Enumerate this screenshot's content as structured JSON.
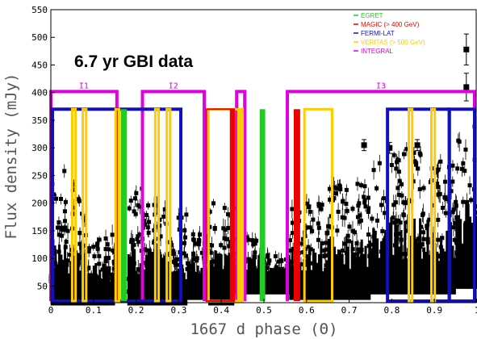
{
  "chart_data": {
    "type": "scatter",
    "title": "6.7 yr GBI data",
    "xlabel": "1667 d phase (Θ)",
    "ylabel": "Flux density (mJy)",
    "xlim": [
      0,
      1
    ],
    "ylim": [
      20,
      550
    ],
    "x_ticks": [
      0,
      0.1,
      0.2,
      0.3,
      0.4,
      0.5,
      0.6,
      0.7,
      0.8,
      0.9,
      1
    ],
    "y_ticks": [
      50,
      100,
      150,
      200,
      250,
      300,
      350,
      400,
      450,
      500,
      550
    ],
    "grid": false,
    "legend": {
      "placement": "top-right",
      "entries": [
        {
          "label": "EGRET",
          "color": "#22cc22"
        },
        {
          "label": "MAGIC (> 400 GeV)",
          "color": "#ee0000"
        },
        {
          "label": "FERMI-LAT",
          "color": "#1010c0"
        },
        {
          "label": "VERITAS (> 500 GeV)",
          "color": "#ffcc00"
        },
        {
          "label": "INTEGRAL",
          "color": "#e000e0"
        }
      ]
    },
    "integral_intervals": [
      {
        "label": "I1",
        "x0": 0.0,
        "x1": 0.155
      },
      {
        "label": "I2",
        "x0": 0.215,
        "x1": 0.36
      },
      {
        "label": "",
        "x0": 0.436,
        "x1": 0.455
      },
      {
        "label": "I3",
        "x0": 0.555,
        "x1": 1.0
      }
    ],
    "integral_level": 402,
    "fermi_boxes": [
      {
        "x0": 0.0,
        "x1": 0.305,
        "y0": 20,
        "y1": 370
      },
      {
        "x0": 0.79,
        "x1": 0.935,
        "y0": 20,
        "y1": 370
      },
      {
        "x0": 0.935,
        "x1": 1.0,
        "y0": 20,
        "y1": 370
      }
    ],
    "veritas_bars": [
      {
        "x0": 0.05,
        "x1": 0.058,
        "y1": 370
      },
      {
        "x0": 0.075,
        "x1": 0.083,
        "y1": 370
      },
      {
        "x0": 0.152,
        "x1": 0.16,
        "y1": 370
      },
      {
        "x0": 0.245,
        "x1": 0.253,
        "y1": 370
      },
      {
        "x0": 0.272,
        "x1": 0.28,
        "y1": 370
      },
      {
        "x0": 0.37,
        "x1": 0.44,
        "y1": 370
      },
      {
        "x0": 0.445,
        "x1": 0.45,
        "y1": 370
      },
      {
        "x0": 0.595,
        "x1": 0.66,
        "y1": 370
      },
      {
        "x0": 0.84,
        "x1": 0.848,
        "y1": 370
      },
      {
        "x0": 0.893,
        "x1": 0.901,
        "y1": 370
      }
    ],
    "magic_bars": [
      {
        "x0": 0.365,
        "x1": 0.43,
        "y1": 370,
        "style": "outline"
      },
      {
        "x0": 0.42,
        "x1": 0.43,
        "y1": 370,
        "style": "fill"
      },
      {
        "x0": 0.57,
        "x1": 0.585,
        "y1": 370,
        "style": "fill"
      }
    ],
    "egret_bars": [
      {
        "x0": 0.164,
        "x1": 0.178,
        "y1": 370
      },
      {
        "x0": 0.49,
        "x1": 0.503,
        "y1": 370
      }
    ],
    "data_regions": [
      {
        "x0": 0.0,
        "x1": 0.04,
        "min": 40,
        "max": 260
      },
      {
        "x0": 0.04,
        "x1": 0.08,
        "min": 40,
        "max": 240
      },
      {
        "x0": 0.08,
        "x1": 0.15,
        "min": 40,
        "max": 150
      },
      {
        "x0": 0.18,
        "x1": 0.25,
        "min": 40,
        "max": 230
      },
      {
        "x0": 0.25,
        "x1": 0.32,
        "min": 40,
        "max": 190
      },
      {
        "x0": 0.32,
        "x1": 0.37,
        "min": 50,
        "max": 150
      },
      {
        "x0": 0.37,
        "x1": 0.43,
        "min": 40,
        "max": 200
      },
      {
        "x0": 0.43,
        "x1": 0.49,
        "min": 60,
        "max": 140
      },
      {
        "x0": 0.49,
        "x1": 0.56,
        "min": 60,
        "max": 110
      },
      {
        "x0": 0.56,
        "x1": 0.65,
        "min": 50,
        "max": 200
      },
      {
        "x0": 0.65,
        "x1": 0.75,
        "min": 50,
        "max": 240
      },
      {
        "x0": 0.75,
        "x1": 0.82,
        "min": 60,
        "max": 290
      },
      {
        "x0": 0.82,
        "x1": 0.9,
        "min": 60,
        "max": 300
      },
      {
        "x0": 0.9,
        "x1": 0.95,
        "min": 60,
        "max": 280
      },
      {
        "x0": 0.95,
        "x1": 1.0,
        "min": 70,
        "max": 340
      }
    ],
    "outlier_points": [
      {
        "x": 0.975,
        "y": 478,
        "err": 28
      },
      {
        "x": 0.975,
        "y": 410,
        "err": 25
      },
      {
        "x": 0.86,
        "y": 305,
        "err": 10
      },
      {
        "x": 0.795,
        "y": 300,
        "err": 10
      },
      {
        "x": 0.735,
        "y": 305,
        "err": 10
      }
    ]
  }
}
